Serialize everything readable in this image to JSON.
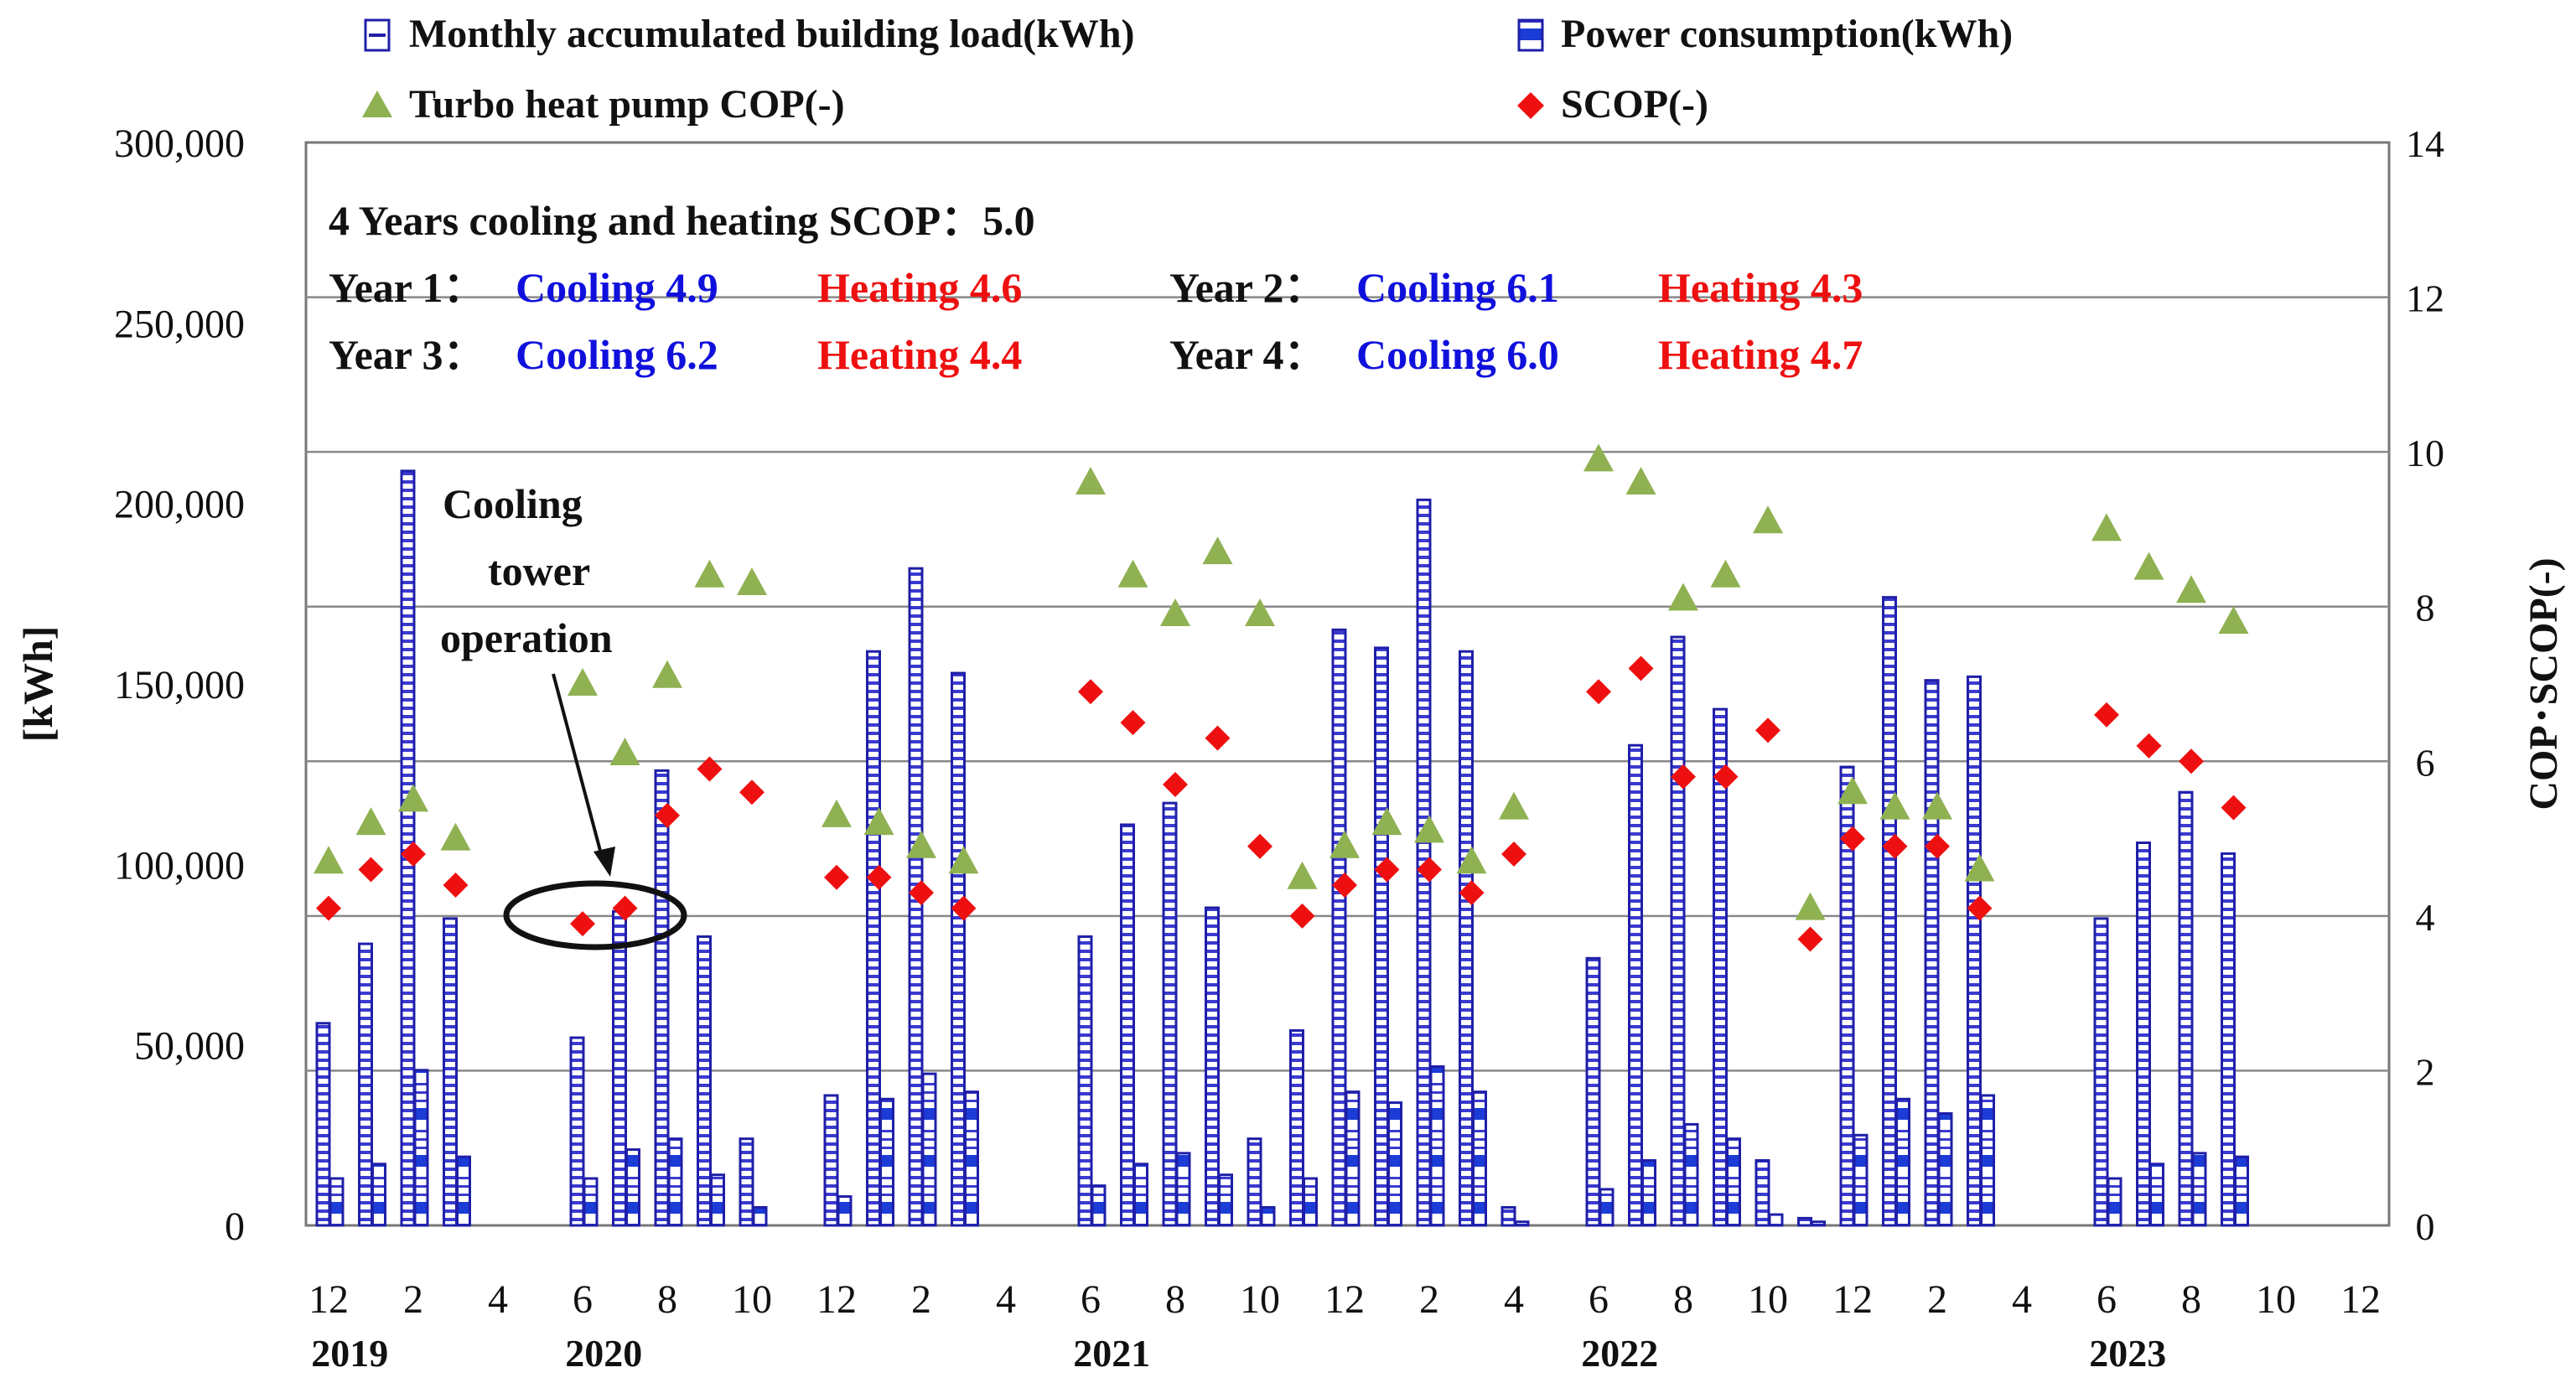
{
  "chart_data": {
    "type": "bar",
    "title": "",
    "xlabel": "",
    "ylabel": "[kWh]",
    "y2label": "COP･SCOP(-)",
    "ylim": [
      0,
      300000
    ],
    "y2lim": [
      0,
      14
    ],
    "yticks": [
      "0",
      "50,000",
      "100,000",
      "150,000",
      "200,000",
      "250,000",
      "300,000"
    ],
    "y2ticks": [
      "0",
      "2",
      "4",
      "6",
      "8",
      "10",
      "12",
      "14"
    ],
    "x_tick_labels": [
      "12",
      "2",
      "4",
      "6",
      "8",
      "10",
      "12",
      "2",
      "4",
      "6",
      "8",
      "10",
      "12",
      "2",
      "4",
      "6",
      "8",
      "10",
      "12",
      "2",
      "4",
      "6",
      "8",
      "10",
      "12"
    ],
    "year_labels": [
      {
        "text": "2019",
        "month_index": 0.5
      },
      {
        "text": "2020",
        "month_index": 6.5
      },
      {
        "text": "2021",
        "month_index": 18.5
      },
      {
        "text": "2022",
        "month_index": 30.5
      },
      {
        "text": "2023",
        "month_index": 42.5
      }
    ],
    "legend": [
      {
        "id": "load",
        "label": "Monthly accumulated building load(kWh)"
      },
      {
        "id": "power",
        "label": "Power consumption(kWh)"
      },
      {
        "id": "cop",
        "label": "Turbo heat pump COP(-)"
      },
      {
        "id": "scop",
        "label": "SCOP(-)"
      }
    ],
    "legend_position": "top",
    "summary": {
      "header": "4 Years cooling and heating SCOP：5.0",
      "rows": [
        {
          "year1": "Year 1：",
          "cool1": "Cooling 4.9",
          "heat1": "Heating 4.6",
          "year2": "Year 2：",
          "cool2": "Cooling 6.1",
          "heat2": "Heating 4.3"
        },
        {
          "year1": "Year 3：",
          "cool1": "Cooling 6.2",
          "heat1": "Heating 4.4",
          "year2": "Year 4：",
          "cool2": "Cooling 6.0",
          "heat2": "Heating 4.7"
        }
      ]
    },
    "annotation": {
      "lines": [
        "Cooling",
        "tower",
        "operation"
      ],
      "month_index": 7
    },
    "series": [
      {
        "name": "Monthly accumulated building load(kWh)",
        "axis": "left",
        "values": [
          56000,
          78000,
          209000,
          85000,
          null,
          null,
          52000,
          87000,
          126000,
          80000,
          24000,
          null,
          36000,
          159000,
          182000,
          153000,
          null,
          null,
          80000,
          111000,
          117000,
          88000,
          24000,
          54000,
          165000,
          160000,
          201000,
          159000,
          5000,
          null,
          74000,
          133000,
          163000,
          143000,
          18000,
          2000,
          127000,
          174000,
          151000,
          152000,
          null,
          null,
          85000,
          106000,
          120000,
          103000,
          null,
          null,
          null
        ]
      },
      {
        "name": "Power consumption(kWh)",
        "axis": "left",
        "values": [
          13000,
          17000,
          43000,
          19000,
          null,
          null,
          13000,
          21000,
          24000,
          14000,
          5000,
          null,
          8000,
          35000,
          42000,
          37000,
          null,
          null,
          11000,
          17000,
          20000,
          14000,
          5000,
          13000,
          37000,
          34000,
          44000,
          37000,
          1000,
          null,
          10000,
          18000,
          28000,
          24000,
          3000,
          1000,
          25000,
          35000,
          31000,
          36000,
          null,
          null,
          13000,
          17000,
          20000,
          19000,
          null,
          null,
          null
        ]
      },
      {
        "name": "Turbo heat pump COP(-)",
        "axis": "right",
        "values": [
          4.7,
          5.2,
          5.5,
          5.0,
          null,
          null,
          7.0,
          6.1,
          7.1,
          8.4,
          8.3,
          null,
          5.3,
          5.2,
          4.9,
          4.7,
          null,
          null,
          9.6,
          8.4,
          7.9,
          8.7,
          7.9,
          4.5,
          4.9,
          5.2,
          5.1,
          4.7,
          5.4,
          null,
          9.9,
          9.6,
          8.1,
          8.4,
          9.1,
          4.1,
          5.6,
          5.4,
          5.4,
          4.6,
          null,
          null,
          9.0,
          8.5,
          8.2,
          7.8,
          null,
          null,
          null
        ]
      },
      {
        "name": "SCOP(-)",
        "axis": "right",
        "values": [
          4.1,
          4.6,
          4.8,
          4.4,
          null,
          null,
          3.9,
          4.1,
          5.3,
          5.9,
          5.6,
          null,
          4.5,
          4.5,
          4.3,
          4.1,
          null,
          null,
          6.9,
          6.5,
          5.7,
          6.3,
          4.9,
          4.0,
          4.4,
          4.6,
          4.6,
          4.3,
          4.8,
          null,
          6.9,
          7.2,
          5.8,
          5.8,
          6.4,
          3.7,
          5.0,
          4.9,
          4.9,
          4.1,
          null,
          null,
          6.6,
          6.2,
          6.0,
          5.4,
          null,
          null,
          null
        ]
      }
    ],
    "colors": {
      "bar_stroke": "#1f1fa8",
      "bar_fill_light": "#dfe7ff",
      "power_accent": "#1b3cd6",
      "cop": "#8fb152",
      "scop": "#ee1010",
      "cooling": "#1010dd",
      "heating": "#ee1010",
      "grid": "#888888"
    }
  }
}
